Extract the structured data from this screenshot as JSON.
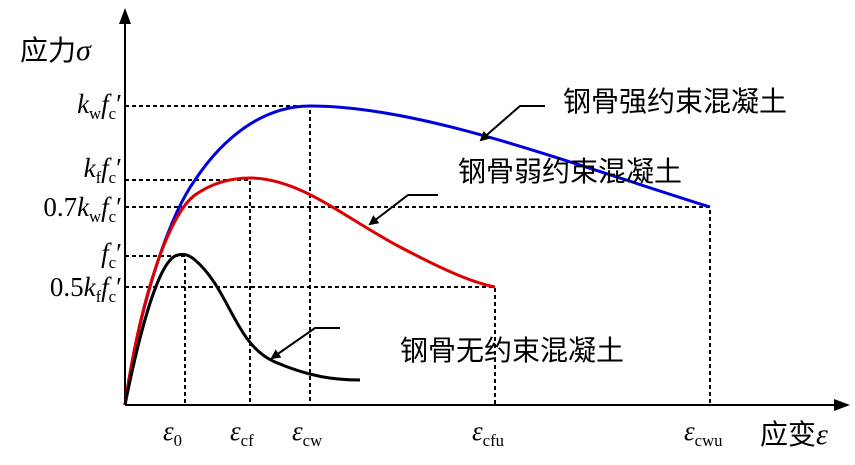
{
  "axes": {
    "y_title": "应力",
    "y_symbol": "σ",
    "x_title": "应变",
    "x_symbol": "ε"
  },
  "y_labels": {
    "kw_fc": {
      "coef": "",
      "k": "k",
      "k_sub": "w",
      "f": "f",
      "f_sub": "c",
      "prime": "′"
    },
    "kf_fc": {
      "coef": "",
      "k": "k",
      "k_sub": "f",
      "f": "f",
      "f_sub": "c",
      "prime": "′"
    },
    "p7_kw_fc": {
      "coef": "0.7",
      "k": "k",
      "k_sub": "w",
      "f": "f",
      "f_sub": "c",
      "prime": "′"
    },
    "fc": {
      "f": "f",
      "f_sub": "c",
      "prime": "′"
    },
    "p5_kf_fc": {
      "coef": "0.5",
      "k": "k",
      "k_sub": "f",
      "f": "f",
      "f_sub": "c",
      "prime": "′"
    }
  },
  "x_labels": {
    "e0": {
      "sym": "ε",
      "sub": "0"
    },
    "ecf": {
      "sym": "ε",
      "sub": "cf"
    },
    "ecw": {
      "sym": "ε",
      "sub": "cw"
    },
    "ecfu": {
      "sym": "ε",
      "sub": "cfu"
    },
    "ecwu": {
      "sym": "ε",
      "sub": "cwu"
    }
  },
  "curves": {
    "strong": {
      "label": "钢骨强约束混凝土",
      "color": "#0000dd"
    },
    "weak": {
      "label": "钢骨弱约束混凝土",
      "color": "#dd0000"
    },
    "none": {
      "label": "钢骨无约束混凝土",
      "color": "#000000"
    }
  }
}
